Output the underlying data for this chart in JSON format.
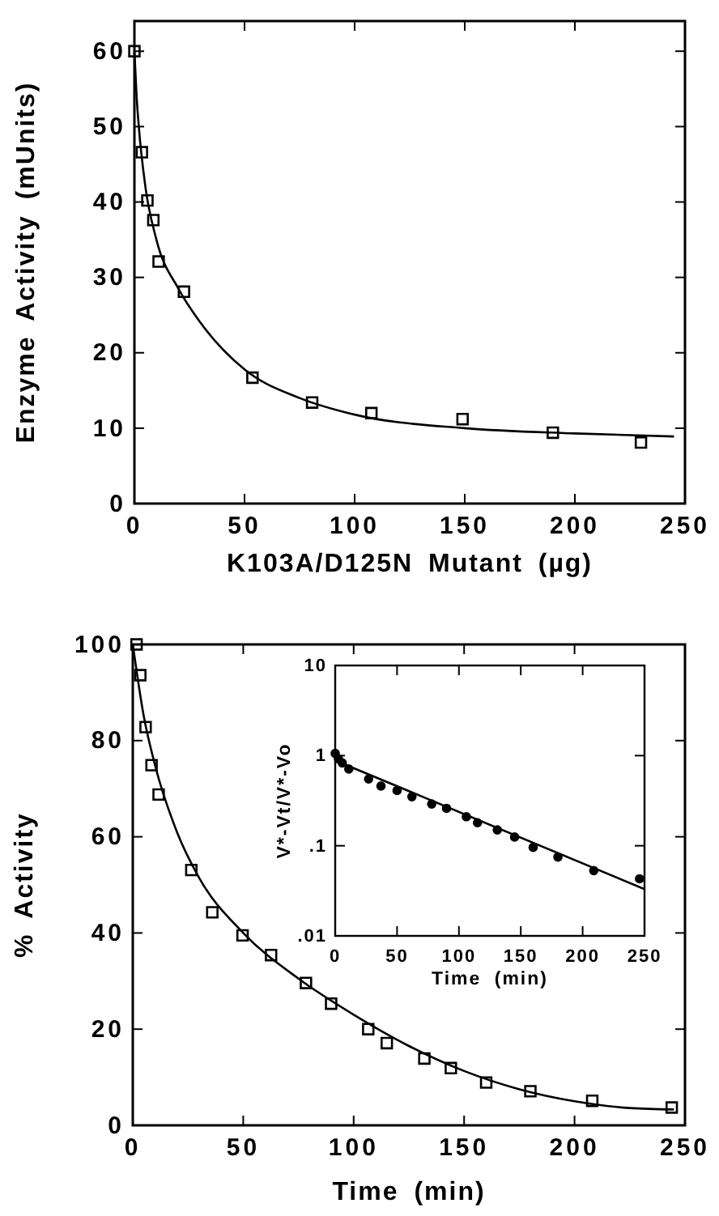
{
  "chart_data": [
    {
      "type": "scatter",
      "xlabel": "K103A/D125N Mutant (µg)",
      "ylabel": "Enzyme Activity (mUnits)",
      "xlim": [
        0,
        250
      ],
      "ylim": [
        0,
        64
      ],
      "xticks": [
        0,
        50,
        100,
        150,
        200,
        250
      ],
      "yticks": [
        0,
        10,
        20,
        30,
        40,
        50,
        60
      ],
      "grid": false,
      "series": [
        {
          "marker": "square",
          "color": "#000000",
          "x": [
            0,
            3.4,
            5.9,
            8.6,
            11,
            22.5,
            53.6,
            80.7,
            107.6,
            149,
            190,
            230
          ],
          "values": [
            60,
            46.6,
            40.2,
            37.6,
            32.1,
            28.1,
            16.7,
            13.4,
            12,
            11.2,
            9.4,
            8.1
          ]
        },
        {
          "type": "line",
          "marker": "none",
          "line_style": "solid",
          "color": "#000000",
          "x": [
            0,
            1,
            2,
            5,
            10,
            20,
            30,
            50,
            75,
            100,
            150,
            200,
            245
          ],
          "values": [
            60,
            54,
            50,
            42,
            35,
            28.5,
            24,
            17.8,
            14,
            11.8,
            10,
            9.3,
            8.9
          ]
        }
      ]
    },
    {
      "type": "scatter",
      "xlabel": "Time (min)",
      "ylabel": "% Activity",
      "xlim": [
        0,
        250
      ],
      "ylim": [
        0,
        100
      ],
      "xticks": [
        0,
        50,
        100,
        150,
        200,
        250
      ],
      "yticks": [
        0,
        20,
        40,
        60,
        80,
        100
      ],
      "grid": false,
      "series": [
        {
          "marker": "square",
          "color": "#000000",
          "x": [
            1.7,
            3.4,
            5.8,
            8.5,
            11.7,
            26.5,
            36,
            49.7,
            62.6,
            78.4,
            89.8,
            106.6,
            115,
            132,
            144,
            160,
            180,
            208,
            244
          ],
          "values": [
            100,
            93.6,
            82.8,
            74.9,
            68.8,
            53.1,
            44.3,
            39.5,
            35.4,
            29.6,
            25.3,
            20,
            17.1,
            13.9,
            11.9,
            8.9,
            7.1,
            5.1,
            3.7
          ]
        },
        {
          "type": "line",
          "marker": "none",
          "line_style": "solid",
          "color": "#000000",
          "x": [
            0,
            5,
            10,
            20,
            30,
            50,
            75,
            100,
            125,
            150,
            175,
            200,
            225,
            245
          ],
          "values": [
            100,
            85,
            75,
            61,
            51.5,
            40,
            30.5,
            23,
            16.5,
            11.3,
            7.5,
            5,
            3.6,
            3.3
          ]
        }
      ]
    },
    {
      "type": "scatter",
      "xlabel": "Time (min)",
      "ylabel": "V*-Vt/V*-Vo",
      "log": true,
      "xlim": [
        0,
        250
      ],
      "ylim": [
        0.01,
        10
      ],
      "xticks": [
        0,
        50,
        100,
        150,
        200,
        250
      ],
      "yticks": [
        {
          "value": 0.01,
          "label": ".01"
        },
        {
          "value": 0.1,
          "label": ".1"
        },
        1,
        10
      ],
      "grid": false,
      "series": [
        {
          "marker": "circle",
          "color": "#000000",
          "x": [
            0,
            2.6,
            5.7,
            11,
            27,
            37,
            50,
            62,
            78,
            90,
            106,
            115,
            131,
            145,
            160,
            180,
            209,
            246
          ],
          "values": [
            1.06,
            0.92,
            0.83,
            0.71,
            0.55,
            0.46,
            0.41,
            0.35,
            0.29,
            0.26,
            0.21,
            0.18,
            0.15,
            0.125,
            0.096,
            0.075,
            0.053,
            0.043
          ]
        },
        {
          "type": "line",
          "marker": "none",
          "line_style": "solid",
          "color": "#000000",
          "x": [
            0,
            3,
            250
          ],
          "values": [
            1.05,
            0.85,
            0.033
          ]
        }
      ]
    }
  ]
}
